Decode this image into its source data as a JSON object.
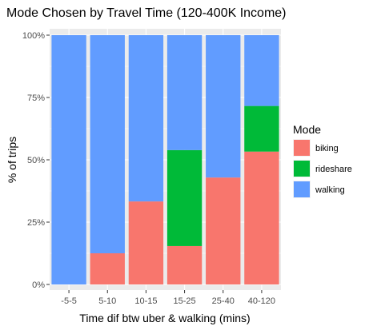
{
  "chart_data": {
    "type": "bar",
    "stacked": true,
    "title": "Mode Chosen by Travel Time (120-400K Income)",
    "xlabel": "Time dif btw uber & walking (mins)",
    "ylabel": "% of trips",
    "categories": [
      "-5-5",
      "5-10",
      "10-15",
      "15-25",
      "25-40",
      "40-120"
    ],
    "ylim": [
      0,
      1
    ],
    "yticks": [
      {
        "value": 0,
        "label": "0%"
      },
      {
        "value": 0.25,
        "label": "25%"
      },
      {
        "value": 0.5,
        "label": "50%"
      },
      {
        "value": 0.75,
        "label": "75%"
      },
      {
        "value": 1,
        "label": "100%"
      }
    ],
    "series": [
      {
        "name": "biking",
        "color": "#F8766D",
        "values": [
          0.0,
          0.125,
          0.333,
          0.154,
          0.429,
          0.533
        ]
      },
      {
        "name": "rideshare",
        "color": "#00BA38",
        "values": [
          0.0,
          0.0,
          0.0,
          0.385,
          0.0,
          0.183
        ]
      },
      {
        "name": "walking",
        "color": "#619CFF",
        "values": [
          1.0,
          0.875,
          0.667,
          0.461,
          0.571,
          0.284
        ]
      }
    ],
    "legend": {
      "title": "Mode",
      "position": "right",
      "items": [
        {
          "label": "biking",
          "color": "#F8766D"
        },
        {
          "label": "rideshare",
          "color": "#00BA38"
        },
        {
          "label": "walking",
          "color": "#619CFF"
        }
      ]
    },
    "grid": true,
    "panel_background": "#EBEBEB",
    "grid_color": "#FFFFFF"
  }
}
